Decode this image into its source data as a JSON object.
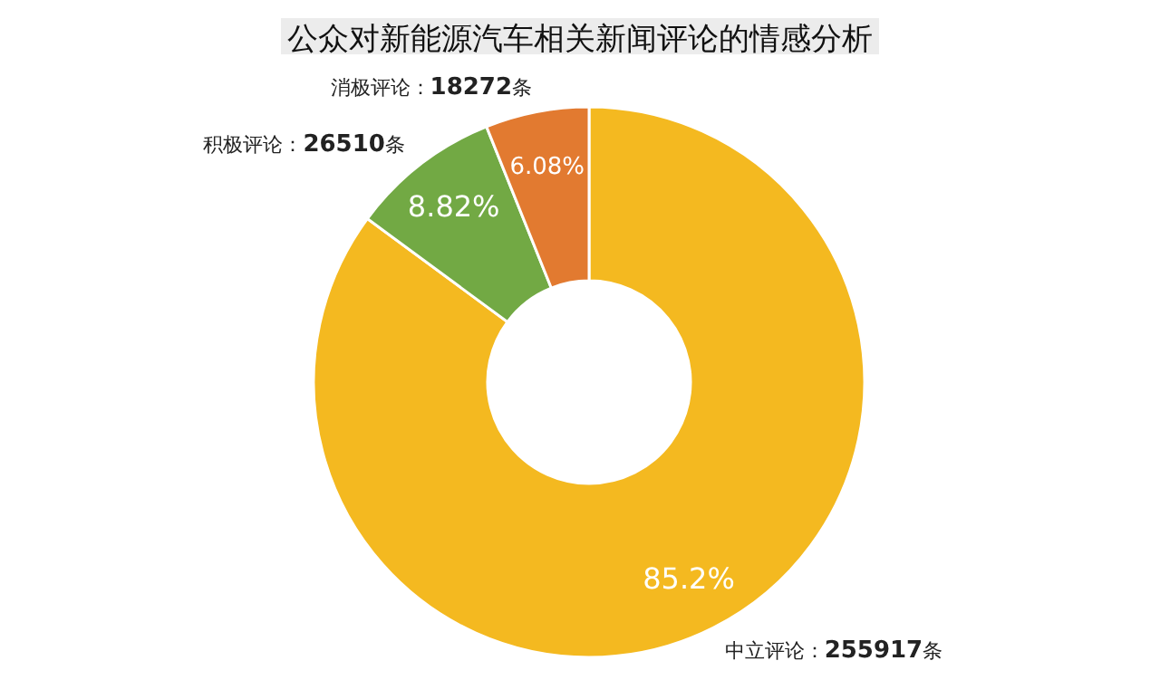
{
  "chart_data": {
    "type": "donut",
    "title": "公众对新能源汽车相关新闻评论的情感分析",
    "categories": [
      "中立评论：255917条",
      "积极评论：26510条",
      "消极评论：18272条"
    ],
    "values": [
      85.2,
      8.82,
      6.08
    ],
    "colors": [
      "#f4b920",
      "#72a944",
      "#e27a30"
    ],
    "value_labels": [
      "85.2%",
      "8.82%",
      "6.08%"
    ]
  }
}
